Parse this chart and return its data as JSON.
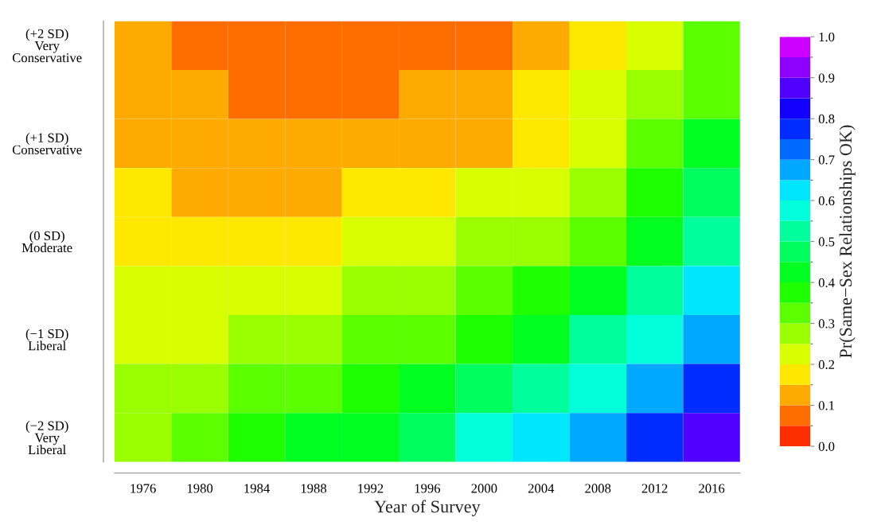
{
  "chart_data": {
    "type": "heatmap",
    "xlabel": "Year of Survey",
    "clabel": "Pr(Same−Sex Relationships OK)",
    "categories": [
      "1976",
      "1980",
      "1984",
      "1988",
      "1992",
      "1996",
      "2000",
      "2004",
      "2008",
      "2012",
      "2016"
    ],
    "y_categories": [
      "(+2 SD)\nVery\nConservative",
      null,
      "(+1 SD)\nConservative",
      null,
      "(0 SD)\nModerate",
      null,
      "(−1 SD)\nLiberal",
      null,
      "(−2 SD)\nVery\nLiberal"
    ],
    "cells": [
      [
        0.1,
        0.08,
        0.07,
        0.07,
        0.08,
        0.09,
        0.095,
        0.12,
        0.17,
        0.24,
        0.31
      ],
      [
        0.13,
        0.1,
        0.09,
        0.09,
        0.09,
        0.1,
        0.12,
        0.16,
        0.21,
        0.27,
        0.35
      ],
      [
        0.14,
        0.12,
        0.11,
        0.11,
        0.12,
        0.13,
        0.15,
        0.19,
        0.24,
        0.31,
        0.4
      ],
      [
        0.16,
        0.15,
        0.14,
        0.15,
        0.16,
        0.18,
        0.2,
        0.24,
        0.29,
        0.37,
        0.47
      ],
      [
        0.18,
        0.18,
        0.18,
        0.19,
        0.2,
        0.22,
        0.25,
        0.29,
        0.35,
        0.43,
        0.54
      ],
      [
        0.2,
        0.21,
        0.22,
        0.23,
        0.25,
        0.28,
        0.31,
        0.36,
        0.42,
        0.51,
        0.61
      ],
      [
        0.22,
        0.24,
        0.26,
        0.28,
        0.31,
        0.34,
        0.38,
        0.43,
        0.5,
        0.59,
        0.68
      ],
      [
        0.26,
        0.28,
        0.31,
        0.34,
        0.37,
        0.41,
        0.46,
        0.52,
        0.59,
        0.67,
        0.76
      ],
      [
        0.29,
        0.33,
        0.36,
        0.4,
        0.44,
        0.49,
        0.55,
        0.62,
        0.69,
        0.77,
        0.86
      ]
    ],
    "clim": [
      0.0,
      1.0
    ],
    "cticks": [
      {
        "value": 0,
        "label": "0.0"
      },
      0.1,
      0.2,
      0.3,
      0.4,
      0.5,
      0.6,
      0.7,
      0.8,
      0.9,
      {
        "value": 1,
        "label": "1.0"
      }
    ]
  }
}
